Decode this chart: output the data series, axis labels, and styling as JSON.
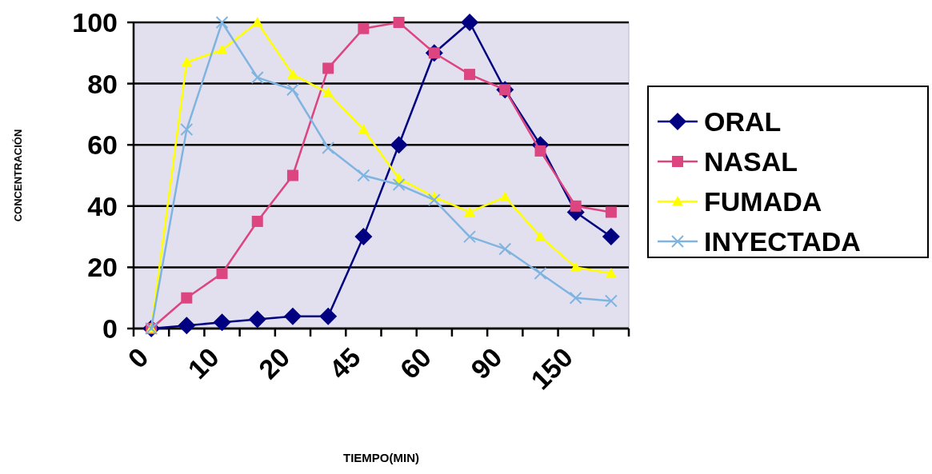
{
  "chart_data": {
    "type": "line",
    "xlabel": "TIEMPO(MIN)",
    "ylabel": "CONCENTRACIÓN",
    "categories": [
      "0",
      null,
      "10",
      null,
      "20",
      null,
      "45",
      null,
      "60",
      null,
      "90",
      null,
      "150",
      null
    ],
    "ylim": [
      0,
      100
    ],
    "yticks": [
      0,
      20,
      40,
      60,
      80,
      100
    ],
    "grid": "y",
    "legend": "right",
    "series": [
      {
        "name": "ORAL",
        "color": "#000080",
        "marker": "diamond",
        "values": [
          0,
          1,
          2,
          3,
          4,
          4,
          30,
          60,
          90,
          100,
          78,
          60,
          38,
          30
        ]
      },
      {
        "name": "NASAL",
        "color": "#dc4580",
        "marker": "square",
        "values": [
          0,
          10,
          18,
          35,
          50,
          85,
          98,
          100,
          90,
          83,
          78,
          58,
          40,
          38
        ]
      },
      {
        "name": "FUMADA",
        "color": "#ffff00",
        "marker": "triangle",
        "values": [
          0,
          87,
          91,
          100,
          83,
          77,
          65,
          49,
          43,
          38,
          43,
          30,
          20,
          18
        ]
      },
      {
        "name": "INYECTADA",
        "color": "#80b4e0",
        "marker": "cross",
        "values": [
          0,
          65,
          100,
          82,
          78,
          59,
          50,
          47,
          42,
          30,
          26,
          18,
          10,
          9
        ]
      }
    ]
  }
}
